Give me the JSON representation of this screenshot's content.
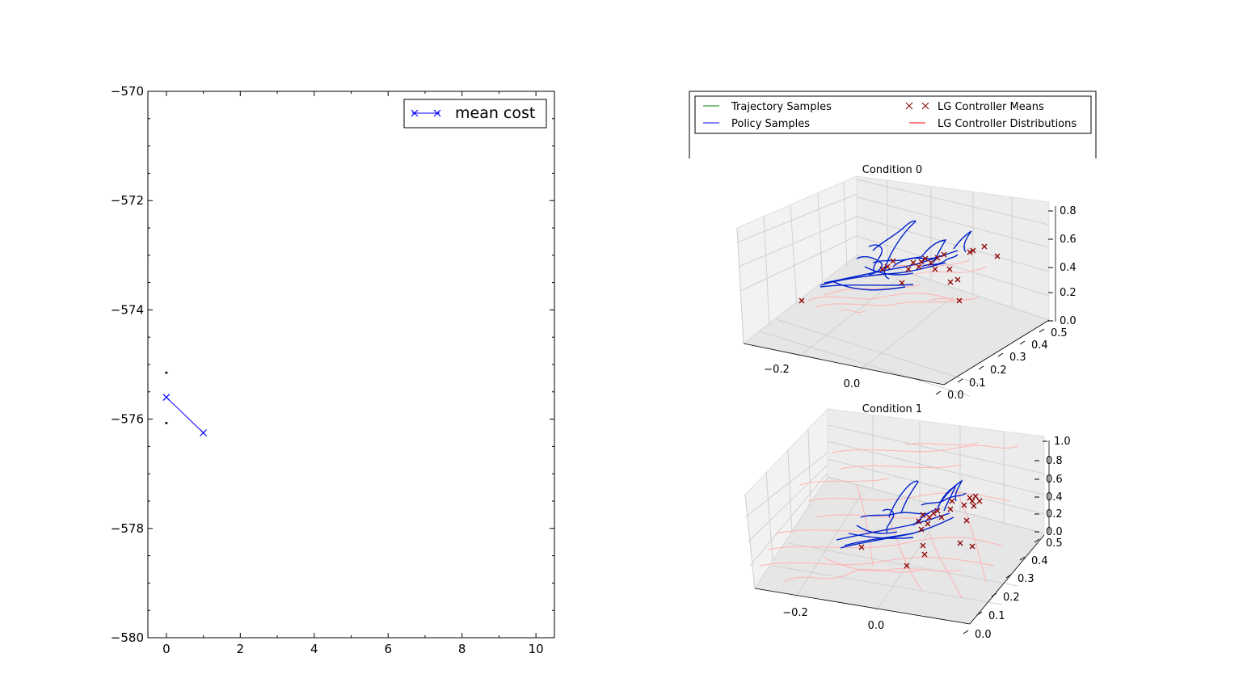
{
  "chart_data": [
    {
      "type": "line",
      "title": "",
      "xlabel": "",
      "ylabel": "",
      "xlim": [
        -0.5,
        10.5
      ],
      "ylim": [
        -580,
        -570
      ],
      "xticks": [
        0,
        2,
        4,
        6,
        8,
        10
      ],
      "yticks": [
        -570,
        -572,
        -574,
        -576,
        -578,
        -580
      ],
      "xtick_labels": [
        "0",
        "2",
        "4",
        "6",
        "8",
        "10"
      ],
      "ytick_labels": [
        "−570",
        "−572",
        "−574",
        "−576",
        "−578",
        "−580"
      ],
      "series": [
        {
          "name": "mean cost",
          "x": [
            0,
            1
          ],
          "y": [
            -575.6,
            -576.25
          ],
          "color": "#0000ff",
          "marker": "x"
        }
      ],
      "extra_points": [
        {
          "x": 0,
          "y": -575.15
        },
        {
          "x": 0,
          "y": -576.07
        }
      ],
      "legend": {
        "placement": "upper-right",
        "entries": [
          "mean cost"
        ]
      },
      "grid": false
    },
    {
      "type": "legend",
      "entries": [
        {
          "label": "Trajectory Samples",
          "color": "#008000",
          "marker": "line"
        },
        {
          "label": "Policy Samples",
          "color": "#0000ff",
          "marker": "line"
        },
        {
          "label": "LG Controller Means",
          "color": "#8b0000",
          "marker": "x"
        },
        {
          "label": "LG Controller Distributions",
          "color": "#ff0000",
          "marker": "line"
        }
      ]
    },
    {
      "type": "scatter",
      "projection": "3d",
      "title": "Condition 0",
      "x_ticks": [
        "−0.2",
        "0.0"
      ],
      "y_ticks": [
        "0.0",
        "0.1",
        "0.2",
        "0.3",
        "0.4",
        "0.5"
      ],
      "z_ticks": [
        "0.0",
        "0.2",
        "0.4",
        "0.6",
        "0.8"
      ],
      "grid": true,
      "marker_color": "#8b0000",
      "policy_color": "#0000cc",
      "distribution_color": "#ffb3b3"
    },
    {
      "type": "scatter",
      "projection": "3d",
      "title": "Condition 1",
      "x_ticks": [
        "−0.2",
        "0.0"
      ],
      "y_ticks": [
        "0.0",
        "0.1",
        "0.2",
        "0.3",
        "0.4",
        "0.5"
      ],
      "z_ticks": [
        "0.0",
        "0.2",
        "0.4",
        "0.6",
        "0.8",
        "1.0"
      ],
      "grid": true,
      "marker_color": "#8b0000",
      "policy_color": "#0000cc",
      "distribution_color": "#ffb3b3"
    }
  ]
}
